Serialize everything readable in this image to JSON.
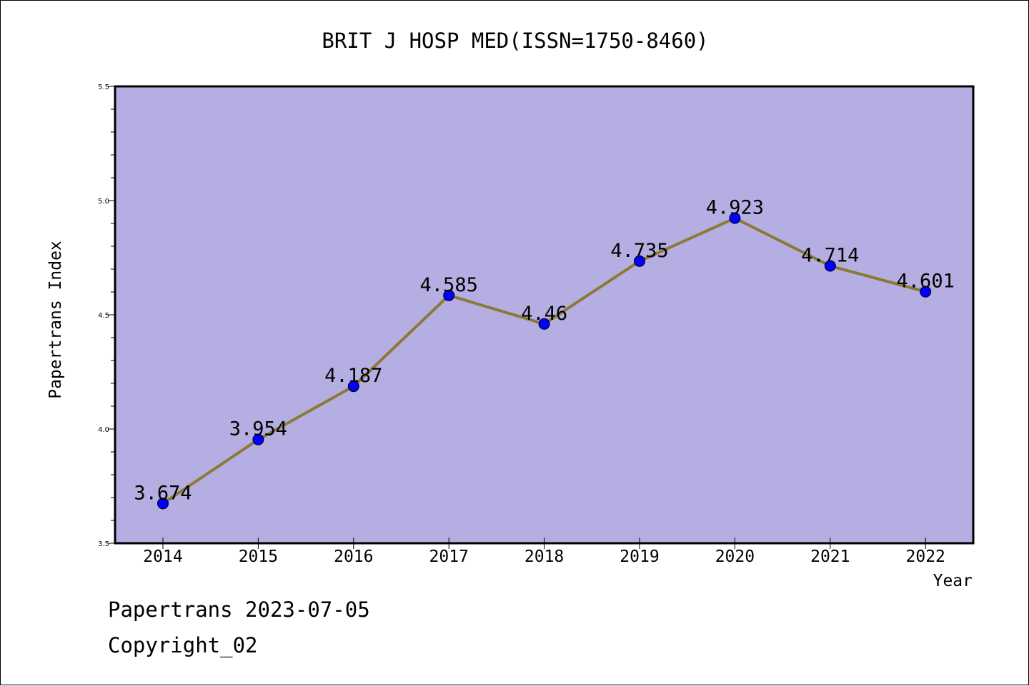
{
  "colors": {
    "plot_background": "#b4aee2",
    "line": "#8b7a36",
    "marker": "#0000ff",
    "axis": "#000000"
  },
  "chart_data": {
    "type": "line",
    "title": "BRIT J HOSP MED(ISSN=1750-8460)",
    "xlabel": "Year",
    "ylabel": "Papertrans Index",
    "categories": [
      "2014",
      "2015",
      "2016",
      "2017",
      "2018",
      "2019",
      "2020",
      "2021",
      "2022"
    ],
    "values": [
      3.674,
      3.954,
      4.187,
      4.585,
      4.46,
      4.735,
      4.923,
      4.714,
      4.601
    ],
    "data_labels": [
      "3.674",
      "3.954",
      "4.187",
      "4.585",
      "4.46",
      "4.735",
      "4.923",
      "4.714",
      "4.601"
    ],
    "ylim": [
      3.5,
      5.5
    ],
    "yticks": [
      "3.5",
      "4.0",
      "4.5",
      "5.0",
      "5.5"
    ],
    "grid": false,
    "marker": "circle"
  },
  "footer": {
    "line1": "Papertrans 2023-07-05",
    "line2": "Copyright_02"
  }
}
